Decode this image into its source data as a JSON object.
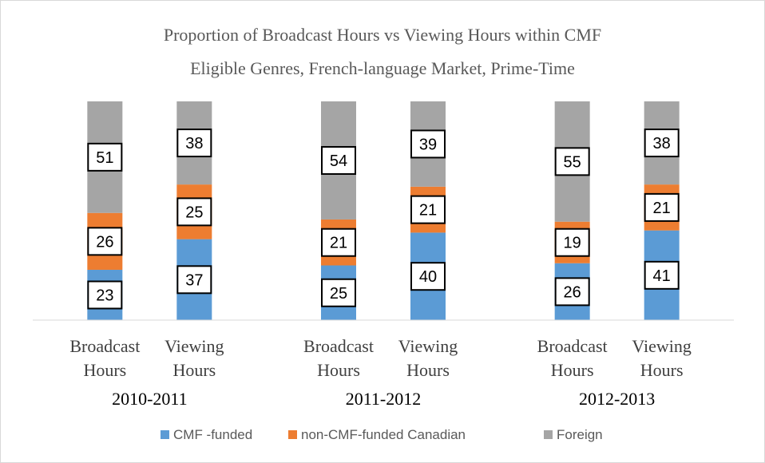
{
  "chart_data": {
    "type": "stacked_bar",
    "title": [
      "Proportion of Broadcast Hours vs Viewing Hours within CMF",
      "Eligible Genres, French-language Market, Prime-Time"
    ],
    "categories": [
      "Broadcast Hours",
      "Viewing Hours",
      "Broadcast Hours",
      "Viewing Hours",
      "Broadcast Hours",
      "Viewing Hours"
    ],
    "groups": [
      "2010-2011",
      "2011-2012",
      "2012-2013"
    ],
    "series": [
      {
        "name": "CMF -funded",
        "color": "#5b9bd5",
        "values": [
          23,
          37,
          25,
          40,
          26,
          41
        ]
      },
      {
        "name": "non-CMF-funded Canadian",
        "color": "#ed7d31",
        "values": [
          26,
          25,
          21,
          21,
          19,
          21
        ]
      },
      {
        "name": "Foreign",
        "color": "#a5a5a5",
        "values": [
          51,
          38,
          54,
          39,
          55,
          38
        ]
      }
    ],
    "ylim": [
      0,
      100
    ]
  }
}
